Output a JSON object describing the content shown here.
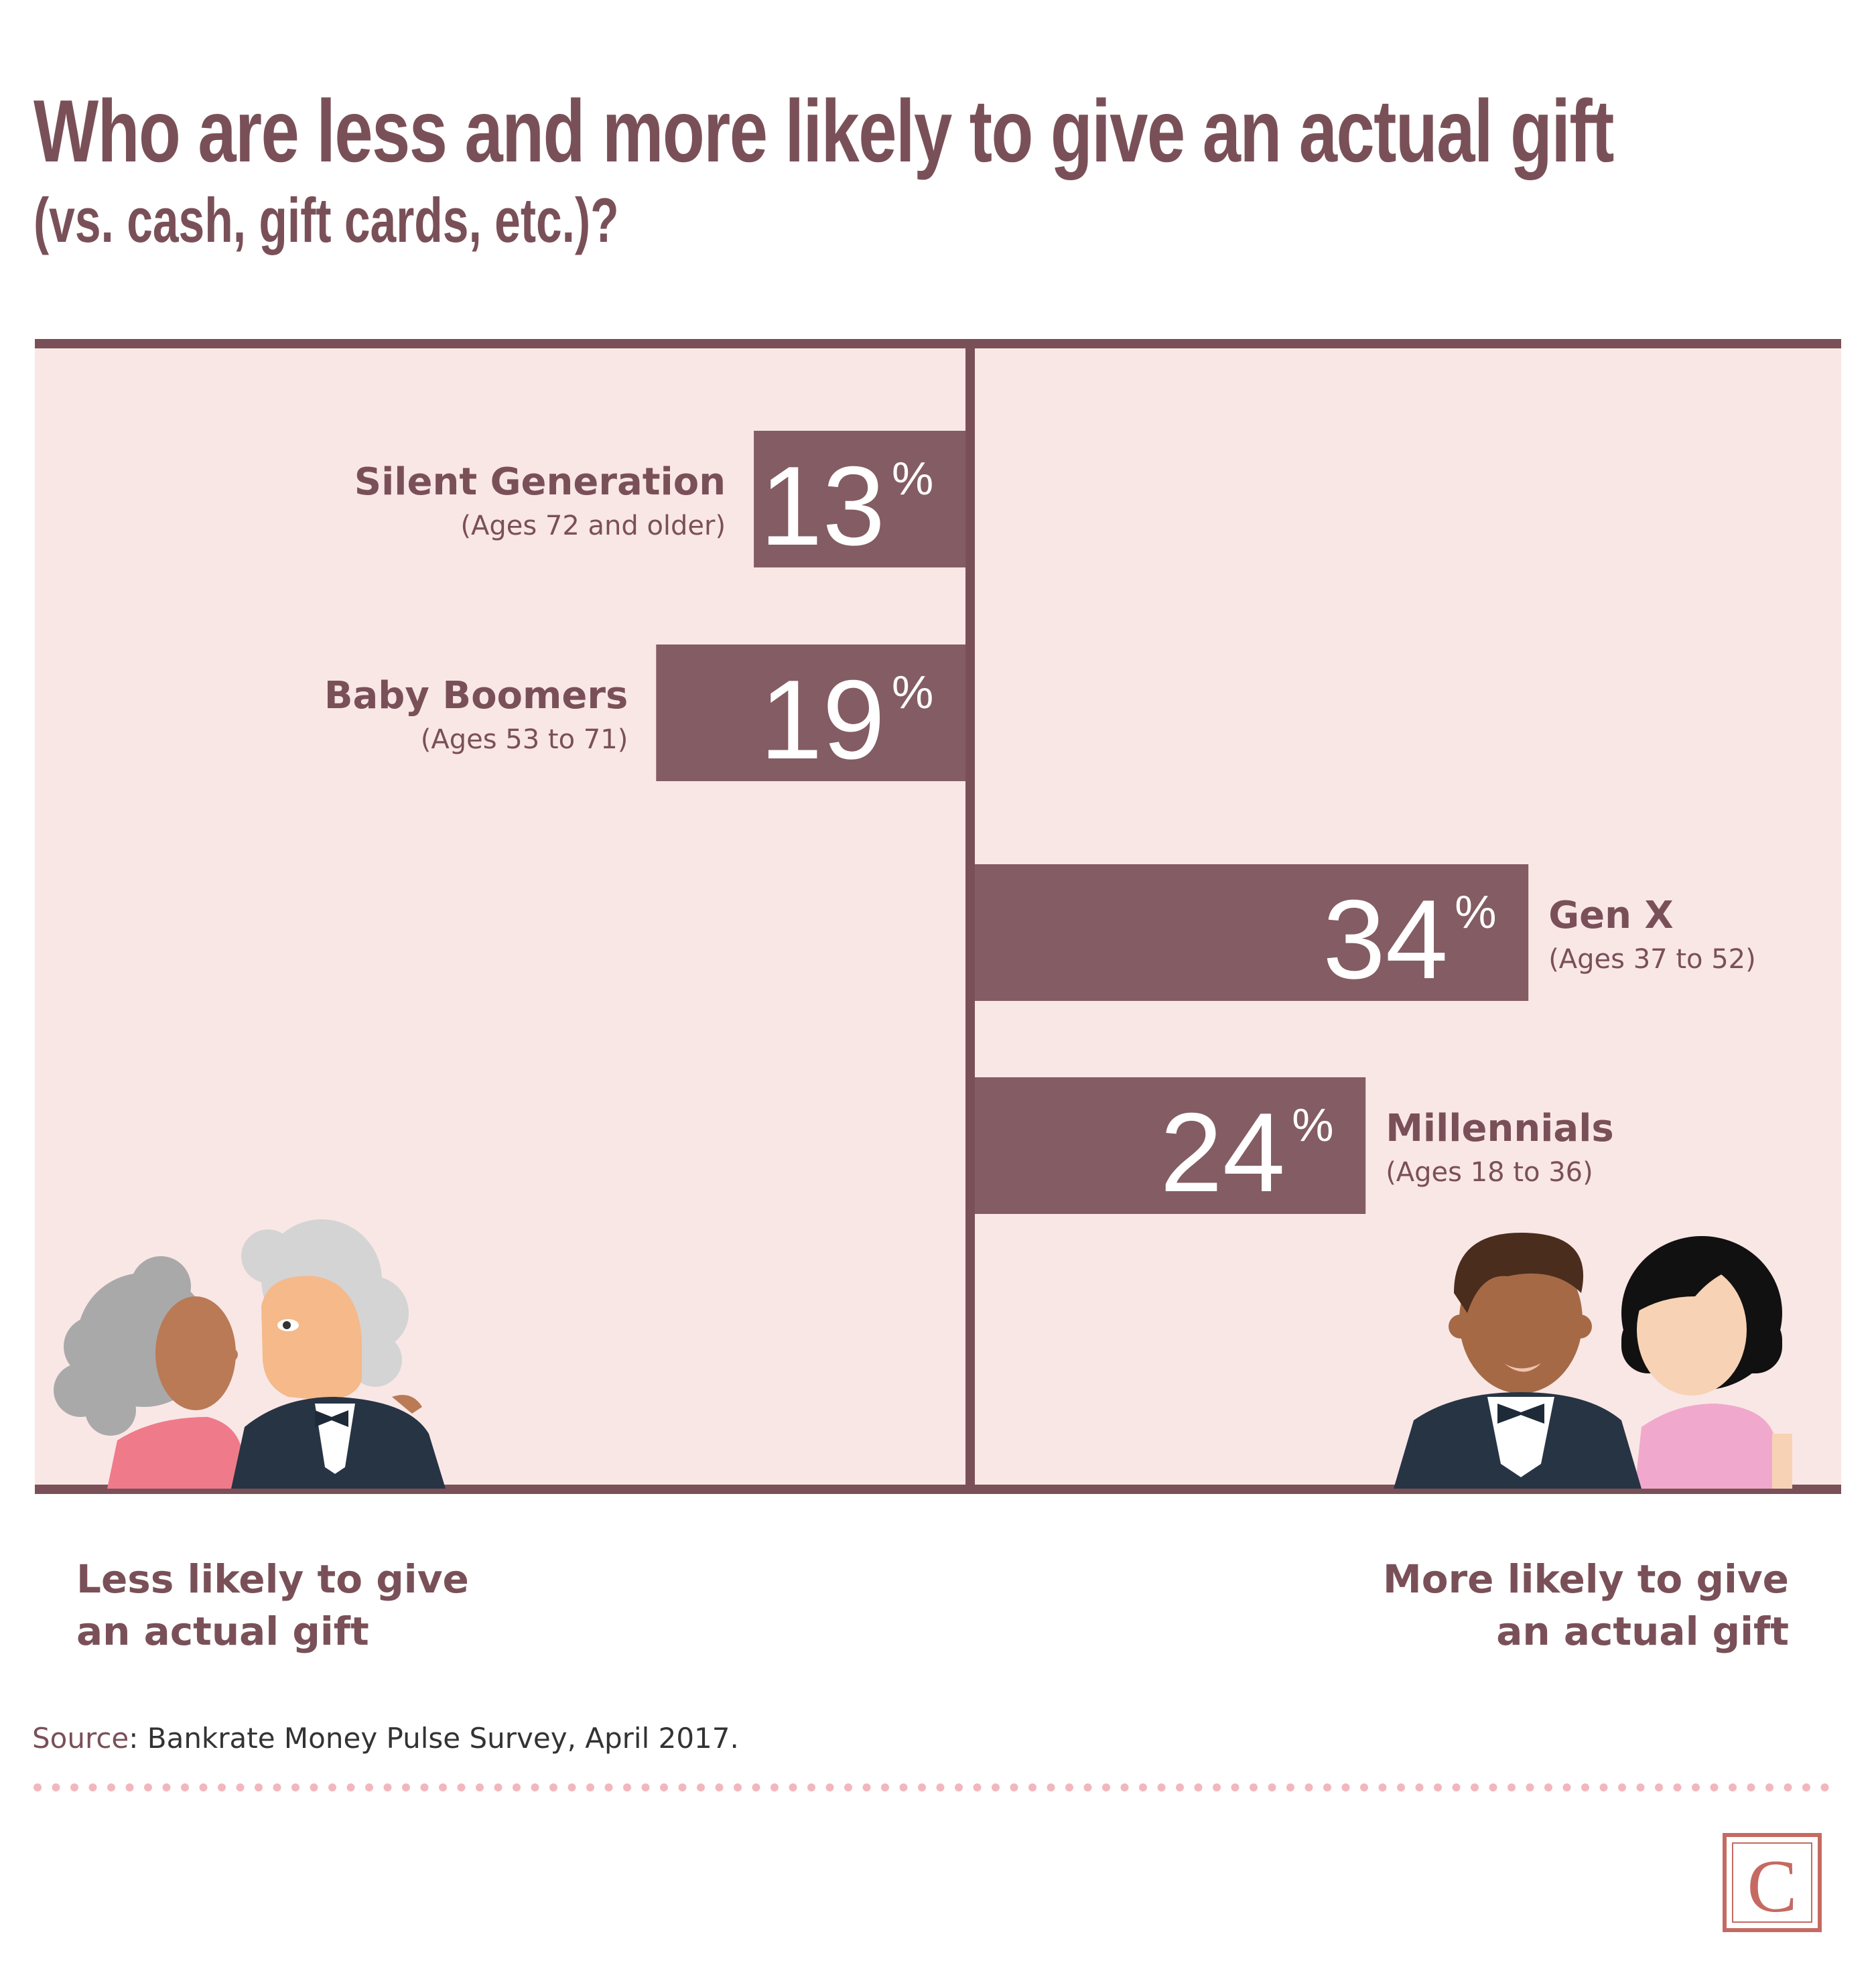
{
  "title": "Who are less and more likely to give an actual gift",
  "subtitle": "(vs. cash, gift cards, etc.)?",
  "chart_data": {
    "type": "bar",
    "orientation": "diverging-horizontal",
    "unit": "%",
    "categories": [
      "Silent Generation",
      "Baby Boomers",
      "Gen X",
      "Millennials"
    ],
    "category_notes": [
      "(Ages 72 and older)",
      "(Ages 53 to 71)",
      "(Ages 37 to 52)",
      "(Ages 18 to 36)"
    ],
    "values": [
      13,
      19,
      34,
      24
    ],
    "value_labels": [
      "13",
      "19",
      "34",
      "24"
    ],
    "sides": [
      "left",
      "left",
      "right",
      "right"
    ],
    "colors": {
      "bar": "#845c63",
      "panel": "#f9e7e6",
      "axis": "#7a5058",
      "text": "#7a5058"
    }
  },
  "footer": {
    "left_line1": "Less likely to give",
    "left_line2": "an actual gift",
    "right_line1": "More likely to give",
    "right_line2": "an actual gift"
  },
  "source": {
    "label": "Source",
    "text": ": Bankrate Money Pulse Survey, April 2017."
  },
  "logo": {
    "letter": "C",
    "color": "#c56a62"
  },
  "illustrations": {
    "left": "older-couple-illustration",
    "right": "young-couple-illustration"
  }
}
